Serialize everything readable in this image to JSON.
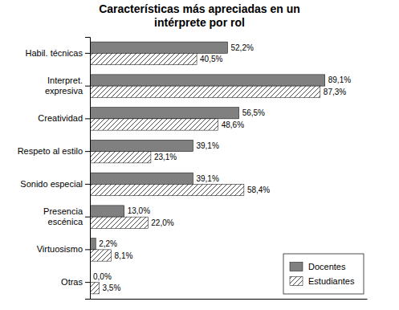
{
  "chart_data": {
    "type": "bar",
    "orientation": "horizontal",
    "title": "Características más apreciadas en un\nintérprete por rol",
    "categories": [
      "Otras",
      "Virtuosismo",
      "Presencia\nescénica",
      "Sonido especial",
      "Respeto al estilo",
      "Creatividad",
      "Interpret.\nexpresiva",
      "Habil. técnicas"
    ],
    "series": [
      {
        "name": "Docentes",
        "color": "#808080",
        "values": [
          0.0,
          2.2,
          13.0,
          39.1,
          39.1,
          56.5,
          89.1,
          52.2
        ],
        "value_labels": [
          "0,0%",
          "2,2%",
          "13,0%",
          "39,1%",
          "39,1%",
          "56,5%",
          "89,1%",
          "52,2%"
        ]
      },
      {
        "name": "Estudiantes",
        "color": "#ffffff",
        "values": [
          3.5,
          8.1,
          22.0,
          58.4,
          23.1,
          48.6,
          87.3,
          40.5
        ],
        "value_labels": [
          "3,5%",
          "8,1%",
          "22,0%",
          "58,4%",
          "23,1%",
          "48,6%",
          "87,3%",
          "40,5%"
        ]
      }
    ],
    "xlim": [
      0,
      105
    ],
    "xticks": [],
    "tick_labels": "y",
    "data_labels": true,
    "legend": "lower right"
  }
}
